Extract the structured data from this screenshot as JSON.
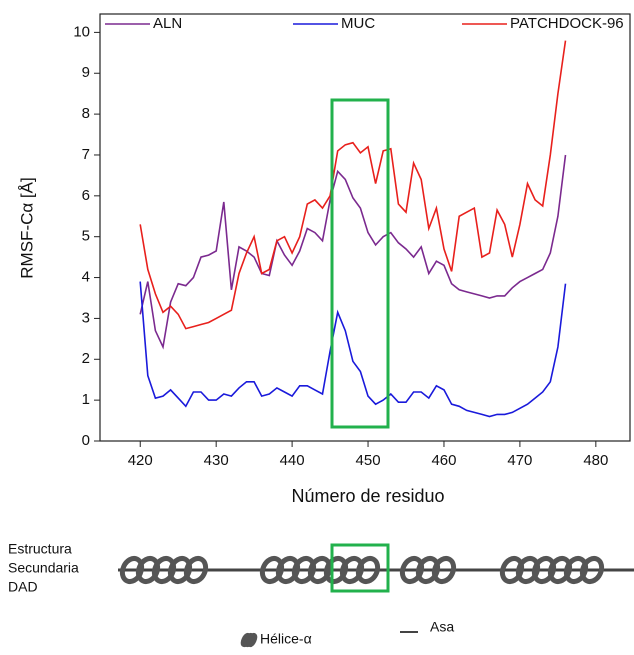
{
  "chart_data": {
    "type": "line",
    "x_label": "Número de residuo",
    "y_label": "RMSF-Cα [Å]",
    "x": [
      420,
      421,
      422,
      423,
      424,
      425,
      426,
      427,
      428,
      429,
      430,
      431,
      432,
      433,
      434,
      435,
      436,
      437,
      438,
      439,
      440,
      441,
      442,
      443,
      444,
      445,
      446,
      447,
      448,
      449,
      450,
      451,
      452,
      453,
      454,
      455,
      456,
      457,
      458,
      459,
      460,
      461,
      462,
      463,
      464,
      465,
      466,
      467,
      468,
      469,
      470,
      471,
      472,
      473,
      474,
      475,
      476
    ],
    "series": [
      {
        "name": "ALN",
        "color": "#7b2a8f",
        "values": [
          3.1,
          3.9,
          2.7,
          2.3,
          3.4,
          3.85,
          3.8,
          4.0,
          4.5,
          4.55,
          4.65,
          5.85,
          3.7,
          4.75,
          4.65,
          4.5,
          4.1,
          4.05,
          4.9,
          4.55,
          4.3,
          4.65,
          5.2,
          5.1,
          4.9,
          5.9,
          6.6,
          6.4,
          5.95,
          5.7,
          5.1,
          4.8,
          5.0,
          5.1,
          4.85,
          4.7,
          4.5,
          4.75,
          4.1,
          4.4,
          4.3,
          3.85,
          3.7,
          3.65,
          3.6,
          3.55,
          3.5,
          3.55,
          3.55,
          3.75,
          3.9,
          4.0,
          4.1,
          4.2,
          4.6,
          5.5,
          7.0
        ]
      },
      {
        "name": "MUC",
        "color": "#1a1adb",
        "values": [
          3.9,
          1.6,
          1.05,
          1.1,
          1.25,
          1.05,
          0.85,
          1.2,
          1.2,
          1.0,
          1.0,
          1.15,
          1.1,
          1.3,
          1.45,
          1.45,
          1.1,
          1.15,
          1.3,
          1.2,
          1.1,
          1.35,
          1.35,
          1.25,
          1.15,
          2.2,
          3.15,
          2.7,
          1.95,
          1.7,
          1.1,
          0.9,
          1.0,
          1.15,
          0.95,
          0.95,
          1.2,
          1.2,
          1.05,
          1.35,
          1.25,
          0.9,
          0.85,
          0.75,
          0.7,
          0.65,
          0.6,
          0.65,
          0.65,
          0.7,
          0.8,
          0.9,
          1.05,
          1.2,
          1.45,
          2.3,
          3.85
        ]
      },
      {
        "name": "PATCHDOCK-96",
        "color": "#e8201c",
        "values": [
          5.3,
          4.2,
          3.6,
          3.15,
          3.3,
          3.1,
          2.75,
          2.8,
          2.85,
          2.9,
          3.0,
          3.1,
          3.2,
          4.1,
          4.6,
          5.0,
          4.1,
          4.2,
          4.9,
          5.0,
          4.6,
          5.0,
          5.8,
          5.9,
          5.7,
          6.0,
          7.1,
          7.25,
          7.3,
          7.05,
          7.2,
          6.3,
          7.1,
          7.15,
          5.8,
          5.6,
          6.8,
          6.4,
          5.2,
          5.7,
          4.7,
          4.15,
          5.5,
          5.6,
          5.7,
          4.5,
          4.6,
          5.65,
          5.3,
          4.5,
          5.3,
          6.3,
          5.9,
          5.75,
          7.0,
          8.5,
          9.8
        ]
      }
    ],
    "xlim": [
      414.7,
      484.5
    ],
    "xticks": [
      420,
      430,
      440,
      450,
      460,
      470,
      480
    ],
    "ylim": [
      0,
      10.45
    ],
    "yticks": [
      0,
      1,
      2,
      3,
      4,
      5,
      6,
      7,
      8,
      9,
      10
    ],
    "legend": "top"
  },
  "secondary_structure": {
    "label_lines": [
      "Estructura",
      "Secundaria",
      "DAD"
    ],
    "legend": [
      "Hélice-α",
      "Asa"
    ]
  }
}
